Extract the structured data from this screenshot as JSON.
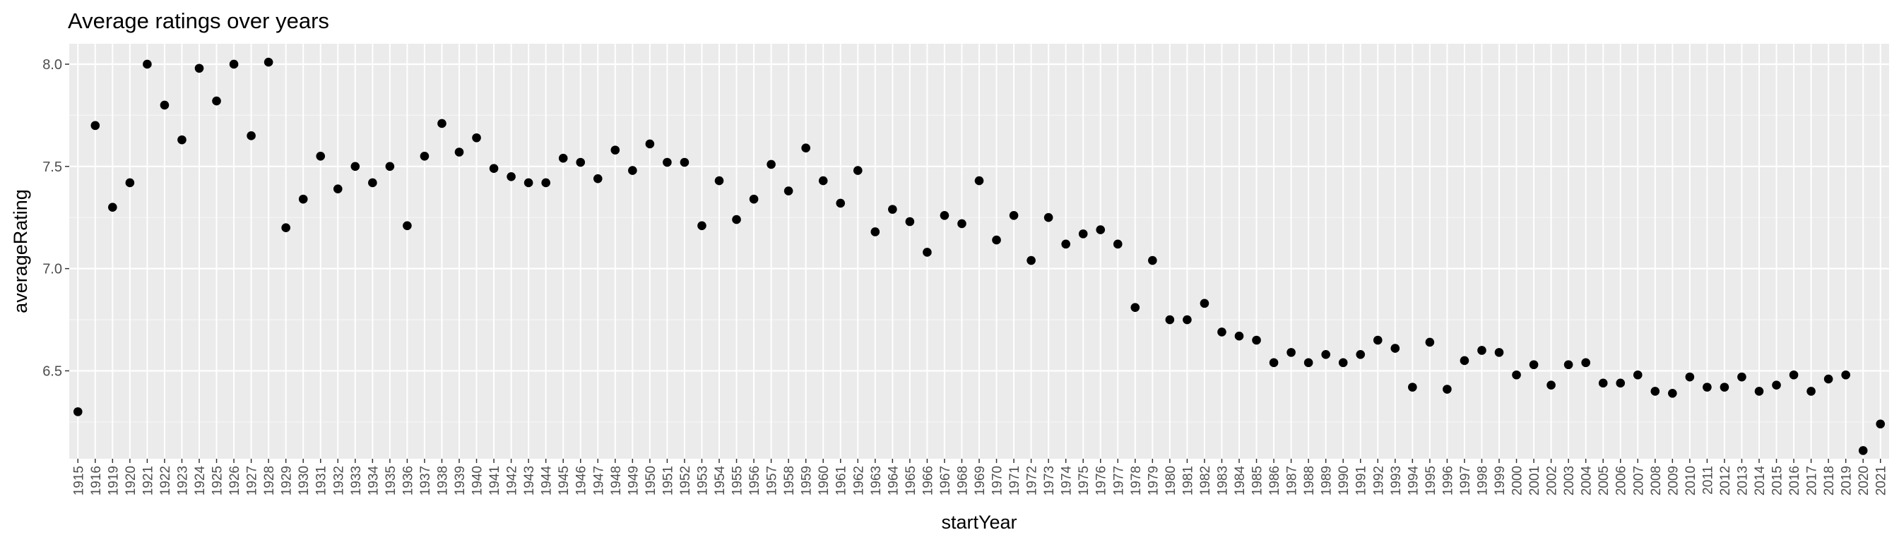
{
  "chart_data": {
    "type": "scatter",
    "title": "Average ratings over years",
    "xlabel": "startYear",
    "ylabel": "averageRating",
    "ylim": [
      6.07,
      8.1
    ],
    "yticks": [
      6.5,
      7.0,
      7.5,
      8.0
    ],
    "ytick_labels": [
      "6.5",
      "7.0",
      "7.5",
      "8.0"
    ],
    "grid": true,
    "legend": "none",
    "colors": {
      "panel": "#ebebeb",
      "grid_major": "#ffffff",
      "grid_minor": "#f5f5f5",
      "point": "#000000",
      "tick": "#333333",
      "label": "#4d4d4d"
    },
    "x": [
      "1915",
      "1916",
      "1919",
      "1920",
      "1921",
      "1922",
      "1923",
      "1924",
      "1925",
      "1926",
      "1927",
      "1928",
      "1929",
      "1930",
      "1931",
      "1932",
      "1933",
      "1934",
      "1935",
      "1936",
      "1937",
      "1938",
      "1939",
      "1940",
      "1941",
      "1942",
      "1943",
      "1944",
      "1945",
      "1946",
      "1947",
      "1948",
      "1949",
      "1950",
      "1951",
      "1952",
      "1953",
      "1954",
      "1955",
      "1956",
      "1957",
      "1958",
      "1959",
      "1960",
      "1961",
      "1962",
      "1963",
      "1964",
      "1965",
      "1966",
      "1967",
      "1968",
      "1969",
      "1970",
      "1971",
      "1972",
      "1973",
      "1974",
      "1975",
      "1976",
      "1977",
      "1978",
      "1979",
      "1980",
      "1981",
      "1982",
      "1983",
      "1984",
      "1985",
      "1986",
      "1987",
      "1988",
      "1989",
      "1990",
      "1991",
      "1992",
      "1993",
      "1994",
      "1995",
      "1996",
      "1997",
      "1998",
      "1999",
      "2000",
      "2001",
      "2002",
      "2003",
      "2004",
      "2005",
      "2006",
      "2007",
      "2008",
      "2009",
      "2010",
      "2011",
      "2012",
      "2013",
      "2014",
      "2015",
      "2016",
      "2017",
      "2018",
      "2019",
      "2020",
      "2021"
    ],
    "y": [
      6.3,
      7.7,
      7.3,
      7.42,
      8.0,
      7.8,
      7.63,
      7.98,
      7.82,
      8.0,
      7.65,
      8.01,
      7.2,
      7.34,
      7.55,
      7.39,
      7.5,
      7.42,
      7.5,
      7.21,
      7.55,
      7.71,
      7.57,
      7.64,
      7.49,
      7.45,
      7.42,
      7.42,
      7.54,
      7.52,
      7.44,
      7.58,
      7.48,
      7.61,
      7.52,
      7.52,
      7.21,
      7.43,
      7.24,
      7.34,
      7.51,
      7.38,
      7.59,
      7.43,
      7.32,
      7.48,
      7.18,
      7.29,
      7.23,
      7.08,
      7.26,
      7.22,
      7.43,
      7.14,
      7.26,
      7.04,
      7.25,
      7.12,
      7.17,
      7.19,
      7.12,
      6.81,
      7.04,
      6.75,
      6.75,
      6.83,
      6.69,
      6.67,
      6.65,
      6.54,
      6.59,
      6.54,
      6.58,
      6.54,
      6.58,
      6.65,
      6.61,
      6.42,
      6.64,
      6.41,
      6.55,
      6.6,
      6.59,
      6.48,
      6.53,
      6.43,
      6.53,
      6.54,
      6.44,
      6.44,
      6.48,
      6.4,
      6.39,
      6.47,
      6.42,
      6.42,
      6.47,
      6.4,
      6.43,
      6.48,
      6.4,
      6.46,
      6.48,
      6.11,
      6.24
    ]
  }
}
